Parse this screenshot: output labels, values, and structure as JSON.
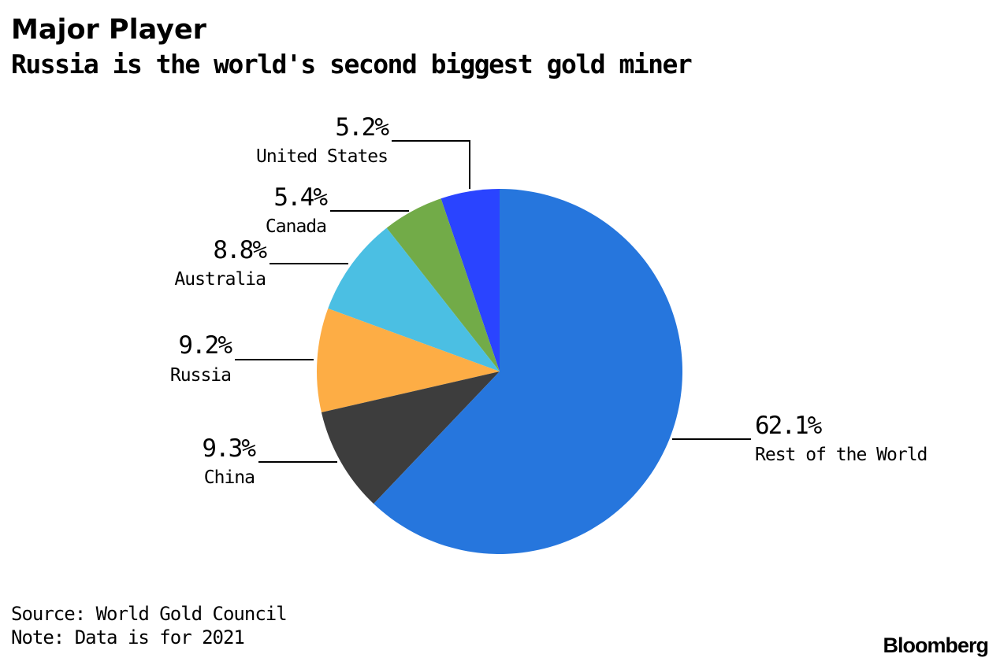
{
  "title": "Major Player",
  "subtitle": "Russia is the world's second biggest gold miner",
  "chart_data": {
    "type": "pie",
    "title": "Major Player",
    "subtitle": "Russia is the world's second biggest gold miner",
    "slices": [
      {
        "label": "United States",
        "value": 5.2,
        "value_label": "5.2%",
        "color": "#2a44ff"
      },
      {
        "label": "Canada",
        "value": 5.4,
        "value_label": "5.4%",
        "color": "#72ab48"
      },
      {
        "label": "Australia",
        "value": 8.8,
        "value_label": "8.8%",
        "color": "#4bbfe3"
      },
      {
        "label": "Russia",
        "value": 9.2,
        "value_label": "9.2%",
        "color": "#fdad45"
      },
      {
        "label": "China",
        "value": 9.3,
        "value_label": "9.3%",
        "color": "#3d3d3d"
      },
      {
        "label": "Rest of the World",
        "value": 62.1,
        "value_label": "62.1%",
        "color": "#2676dd"
      }
    ]
  },
  "footer": {
    "source": "Source: World Gold Council",
    "note": "Note: Data is for 2021"
  },
  "brand": "Bloomberg"
}
